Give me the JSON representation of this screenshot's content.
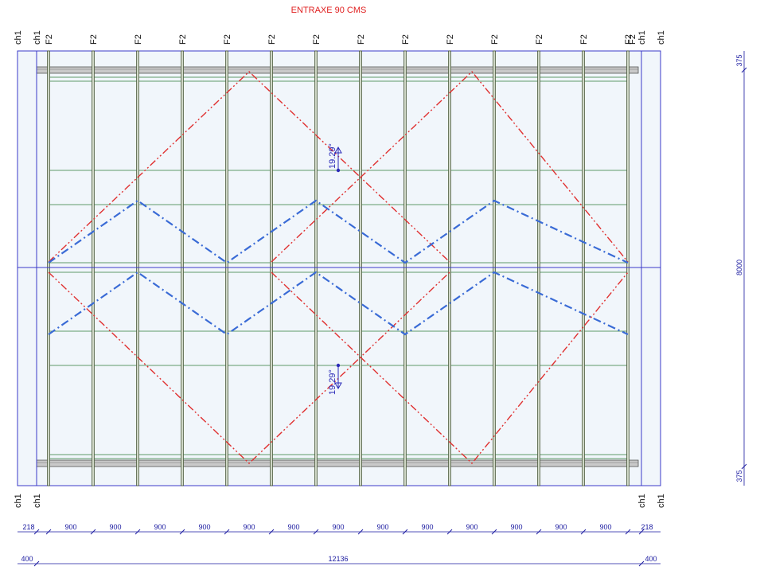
{
  "title": "ENTRAXE 90 CMS",
  "top_labels": [
    "ch1",
    "ch1",
    "F2",
    "F2",
    "F2",
    "F2",
    "F2",
    "F2",
    "F2",
    "F2",
    "F2",
    "F2",
    "F2",
    "F2",
    "F2",
    "F2",
    "F2",
    "ch1",
    "ch1"
  ],
  "bottom_labels": [
    "ch1",
    "ch1",
    "ch1",
    "ch1"
  ],
  "angle_top": "19.29°",
  "angle_bottom": "19.29°",
  "dims_row1": [
    "218",
    "900",
    "900",
    "900",
    "900",
    "900",
    "900",
    "900",
    "900",
    "900",
    "900",
    "900",
    "900",
    "900",
    "218"
  ],
  "dims_row2": [
    "400",
    "12136",
    "400"
  ],
  "dims_right": [
    "375",
    "8000",
    "375"
  ],
  "colors": {
    "title": "#e02020",
    "red_bracing": "#e03030",
    "blue_bracing": "#3a6bd6",
    "purlin": "#2f7d3a",
    "dimension": "#1a1aa0",
    "frame": "#3a3ac8",
    "panel_fill": "#f1f6fb"
  }
}
